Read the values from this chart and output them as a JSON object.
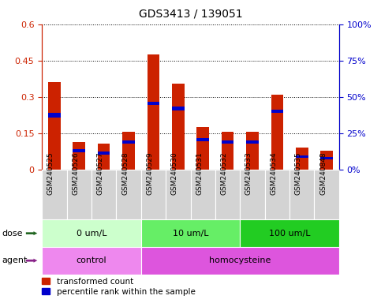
{
  "title": "GDS3413 / 139051",
  "samples": [
    "GSM240525",
    "GSM240526",
    "GSM240527",
    "GSM240528",
    "GSM240529",
    "GSM240530",
    "GSM240531",
    "GSM240532",
    "GSM240533",
    "GSM240534",
    "GSM240535",
    "GSM240848"
  ],
  "transformed_count": [
    0.36,
    0.115,
    0.108,
    0.158,
    0.475,
    0.355,
    0.175,
    0.155,
    0.155,
    0.31,
    0.09,
    0.078
  ],
  "blue_segment_bottom": [
    0.215,
    0.072,
    0.062,
    0.108,
    0.267,
    0.245,
    0.118,
    0.108,
    0.108,
    0.235,
    0.048,
    0.042
  ],
  "blue_segment_height": [
    0.018,
    0.014,
    0.012,
    0.012,
    0.014,
    0.014,
    0.012,
    0.012,
    0.012,
    0.014,
    0.01,
    0.01
  ],
  "ylim_left": [
    0,
    0.6
  ],
  "ylim_right": [
    0,
    100
  ],
  "yticks_left": [
    0,
    0.15,
    0.3,
    0.45,
    0.6
  ],
  "yticks_right": [
    0,
    25,
    50,
    75,
    100
  ],
  "ytick_labels_left": [
    "0",
    "0.15",
    "0.3",
    "0.45",
    "0.6"
  ],
  "ytick_labels_right": [
    "0%",
    "25%",
    "50%",
    "75%",
    "100%"
  ],
  "dose_groups": [
    {
      "label": "0 um/L",
      "start": 0,
      "end": 4,
      "color": "#ccffcc"
    },
    {
      "label": "10 um/L",
      "start": 4,
      "end": 8,
      "color": "#66ee66"
    },
    {
      "label": "100 um/L",
      "start": 8,
      "end": 12,
      "color": "#22cc22"
    }
  ],
  "agent_groups": [
    {
      "label": "control",
      "start": 0,
      "end": 4,
      "color": "#ee88ee"
    },
    {
      "label": "homocysteine",
      "start": 4,
      "end": 12,
      "color": "#dd55dd"
    }
  ],
  "bar_color_red": "#cc2200",
  "bar_color_blue": "#0000cc",
  "bar_width": 0.5,
  "legend_items": [
    "transformed count",
    "percentile rank within the sample"
  ],
  "legend_colors": [
    "#cc2200",
    "#0000cc"
  ],
  "dose_label": "dose",
  "agent_label": "agent",
  "dose_arrow_color": "#226622",
  "agent_arrow_color": "#882288"
}
